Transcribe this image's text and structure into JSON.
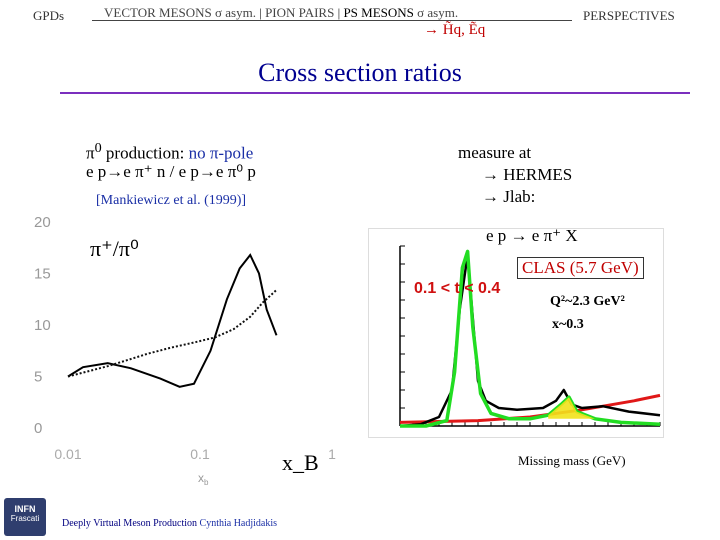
{
  "header": {
    "left_section": "GPDs",
    "nav": {
      "item1": "VECTOR MESONS",
      "item1_suffix": "σ asym.",
      "item2": "PION PAIRS",
      "item3": "PS MESONS",
      "item3_suffix": "σ asym.",
      "right_section": "PERSPECTIVES"
    },
    "arrow_text": "→ H̃q, Ẽq"
  },
  "slide": {
    "title": "Cross section ratios",
    "left_line1_a": "π",
    "left_line1_sup": "0",
    "left_line1_b": " production: ",
    "left_line1_blue": "no π-pole",
    "left_line2": "e p→e π⁺ n / e p→e π⁰ p",
    "reference": "[Mankiewicz et al. (1999)]",
    "measure_heading": "measure at",
    "measure_items": [
      "→ HERMES",
      "→ Jlab:"
    ],
    "footer_title": "Deeply Virtual Meson Production",
    "footer_author": "Cynthia Hadjidakis",
    "logo_line1": "INFN",
    "logo_line2": "Frascati"
  },
  "chart_data": [
    {
      "type": "line",
      "title": "π⁺/π⁰",
      "xlabel": "x_B",
      "x_tick_labels": [
        "0.01",
        "0.1",
        "1"
      ],
      "y_tick_labels": [
        "0",
        "5",
        "10",
        "15",
        "20"
      ],
      "xscale": "log",
      "xlim": [
        0.01,
        1
      ],
      "ylim": [
        0,
        20
      ],
      "series": [
        {
          "style": "solid",
          "x": [
            0.01,
            0.013,
            0.02,
            0.03,
            0.05,
            0.07,
            0.09,
            0.12,
            0.16,
            0.2,
            0.24,
            0.28,
            0.32,
            0.38
          ],
          "y": [
            5.0,
            5.9,
            6.3,
            5.8,
            4.8,
            4.0,
            4.3,
            7.5,
            12.5,
            15.5,
            16.8,
            15.0,
            11.5,
            9.0
          ]
        },
        {
          "style": "dotted",
          "x": [
            0.01,
            0.02,
            0.04,
            0.06,
            0.09,
            0.13,
            0.18,
            0.24,
            0.3,
            0.38
          ],
          "y": [
            5.0,
            6.0,
            7.2,
            7.8,
            8.3,
            8.8,
            9.6,
            10.8,
            12.2,
            13.4
          ]
        }
      ]
    },
    {
      "type": "line",
      "title": "e p → e π⁺ X",
      "legend": "CLAS (5.7 GeV)",
      "annotation_t": "0.1 < t < 0.4",
      "annotation_q2": "Q²~2.3 GeV²",
      "annotation_x": "x~0.3",
      "xlabel": "Missing mass (GeV)",
      "series": [
        {
          "style": "black-data",
          "x": [
            0.0,
            0.08,
            0.15,
            0.2,
            0.23,
            0.26,
            0.28,
            0.3,
            0.33,
            0.38,
            0.45,
            0.55,
            0.6,
            0.63,
            0.66,
            0.7,
            0.78,
            0.88,
            1.0
          ],
          "y": [
            0.0,
            0.01,
            0.05,
            0.2,
            0.65,
            0.95,
            0.6,
            0.25,
            0.14,
            0.1,
            0.09,
            0.1,
            0.14,
            0.2,
            0.12,
            0.1,
            0.11,
            0.08,
            0.06
          ]
        },
        {
          "style": "green-fit",
          "x": [
            0.0,
            0.1,
            0.18,
            0.21,
            0.24,
            0.26,
            0.28,
            0.31,
            0.35,
            0.42,
            0.5,
            0.57,
            0.62,
            0.65,
            0.68,
            0.75,
            0.85,
            1.0
          ],
          "y": [
            0.0,
            0.0,
            0.03,
            0.3,
            0.88,
            0.97,
            0.55,
            0.18,
            0.07,
            0.04,
            0.04,
            0.06,
            0.12,
            0.16,
            0.08,
            0.04,
            0.02,
            0.01
          ]
        },
        {
          "style": "red-background",
          "x": [
            0.0,
            0.3,
            0.5,
            0.7,
            0.9,
            1.0
          ],
          "y": [
            0.02,
            0.03,
            0.05,
            0.09,
            0.14,
            0.17
          ]
        }
      ]
    }
  ]
}
